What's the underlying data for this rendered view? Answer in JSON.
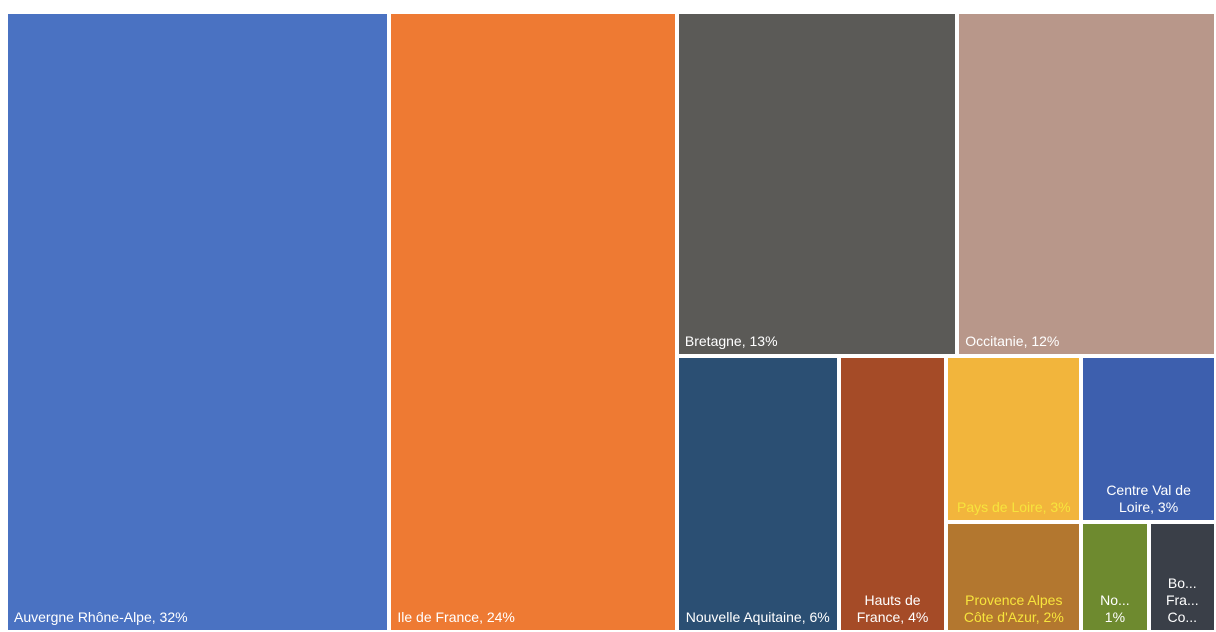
{
  "chart_data": {
    "type": "treemap",
    "labels": [
      "Auvergne Rhône-Alpe, 32%",
      "Ile de France, 24%",
      "Bretagne, 13%",
      "Occitanie, 12%",
      "Nouvelle Aquitaine, 6%",
      "Hauts de France, 4%",
      "Pays de Loire, 3%",
      "Provence Alpes Côte d'Azur, 2%",
      "Centre Val de Loire, 3%",
      "No... 1%",
      "Bo... Fra... Co..."
    ],
    "values": [
      32,
      24,
      13,
      12,
      6,
      4,
      3,
      2,
      3,
      1,
      1
    ],
    "colors": [
      "#4a72c2",
      "#ee7a33",
      "#5b5a57",
      "#b8978a",
      "#2b4f73",
      "#a54b27",
      "#f2b53c",
      "#b3772f",
      "#3d5fae",
      "#6e8a2f",
      "#3a3f48"
    ],
    "text_colors": [
      "#ffffff",
      "#ffffff",
      "#ffffff",
      "#ffffff",
      "#ffffff",
      "#ffffff",
      "#f7e43c",
      "#f7e43c",
      "#ffffff",
      "#ffffff",
      "#ffffff"
    ]
  }
}
